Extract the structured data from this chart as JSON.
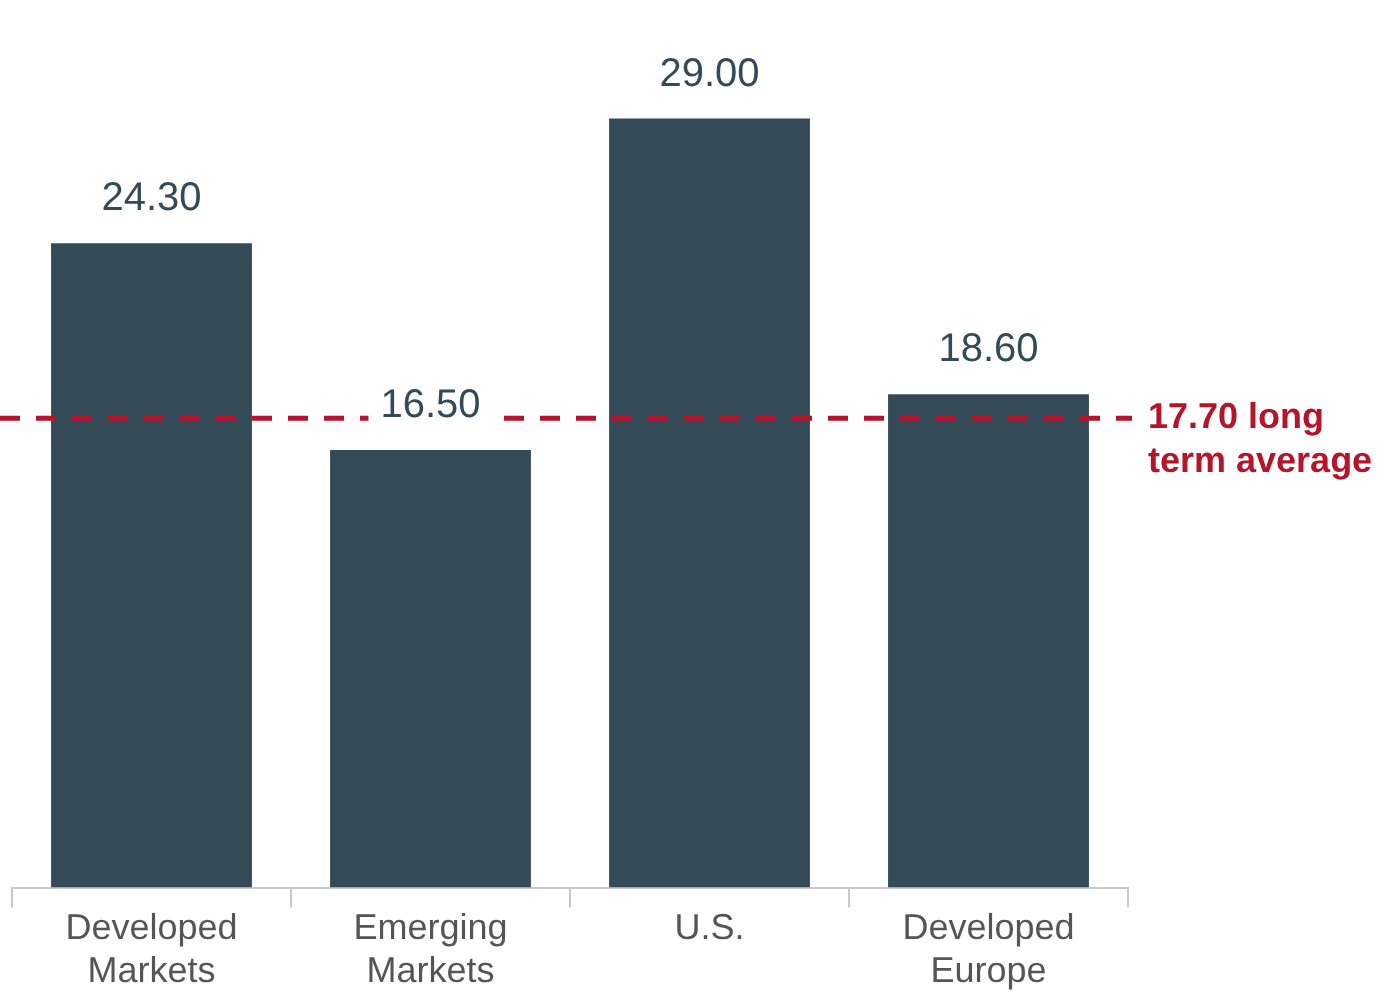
{
  "chart_data": {
    "type": "bar",
    "categories": [
      "Developed Markets",
      "Emerging Markets",
      "U.S.",
      "Developed Europe"
    ],
    "values": [
      24.3,
      16.5,
      29.0,
      18.6
    ],
    "color": "#344b57",
    "value_labels": [
      "24.30",
      "16.50",
      "29.00",
      "18.60"
    ],
    "ref_lines": [
      {
        "axis": "y",
        "value": 17.7,
        "label": "17.70 long term average",
        "color": "#b5152b",
        "line_style": "dashed"
      }
    ],
    "grid": false,
    "legend": false,
    "tick_labels": "x"
  }
}
